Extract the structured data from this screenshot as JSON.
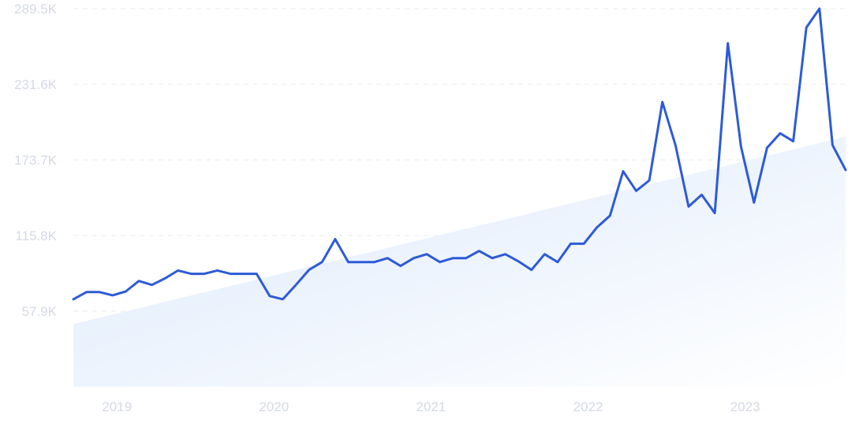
{
  "chart_data": {
    "type": "line",
    "title": "",
    "xlabel": "",
    "ylabel": "",
    "ylim": [
      0,
      289500
    ],
    "y_ticks": [
      {
        "value": 57900,
        "label": "57.9K"
      },
      {
        "value": 115800,
        "label": "115.8K"
      },
      {
        "value": 173700,
        "label": "173.7K"
      },
      {
        "value": 231600,
        "label": "231.6K"
      },
      {
        "value": 289500,
        "label": "289.5K"
      }
    ],
    "x_ticks": [
      {
        "value": "2019-01",
        "label": "2019"
      },
      {
        "value": "2020-01",
        "label": "2020"
      },
      {
        "value": "2021-01",
        "label": "2021"
      },
      {
        "value": "2022-01",
        "label": "2022"
      },
      {
        "value": "2023-01",
        "label": "2023"
      }
    ],
    "grid": true,
    "legend": "none",
    "line_color": "#2d5bd7",
    "trend_fill_color": "#dce9fb",
    "series": [
      {
        "x": [
          "2018-11",
          "2018-12",
          "2019-01",
          "2019-02",
          "2019-03",
          "2019-04",
          "2019-05",
          "2019-06",
          "2019-07",
          "2019-08",
          "2019-09",
          "2019-10",
          "2019-11",
          "2019-12",
          "2020-01",
          "2020-02",
          "2020-03",
          "2020-04",
          "2020-05",
          "2020-06",
          "2020-07",
          "2020-08",
          "2020-09",
          "2020-10",
          "2020-11",
          "2020-12",
          "2021-01",
          "2021-02",
          "2021-03",
          "2021-04",
          "2021-05",
          "2021-06",
          "2021-07",
          "2021-08",
          "2021-09",
          "2021-10",
          "2021-11",
          "2021-12",
          "2022-01",
          "2022-02",
          "2022-03",
          "2022-04",
          "2022-05",
          "2022-06",
          "2022-07",
          "2022-08",
          "2022-09",
          "2022-10",
          "2022-11",
          "2022-12",
          "2023-01",
          "2023-02",
          "2023-03",
          "2023-04",
          "2023-05",
          "2023-06",
          "2023-07",
          "2023-08",
          "2023-09",
          "2023-10"
        ],
        "values": [
          67000,
          72500,
          72500,
          70000,
          73000,
          81000,
          78000,
          83000,
          89000,
          86500,
          86500,
          89000,
          86500,
          86500,
          86500,
          69500,
          67000,
          78000,
          89500,
          95500,
          113000,
          95500,
          95500,
          95500,
          98500,
          92500,
          98500,
          101500,
          95500,
          98500,
          98500,
          104000,
          98500,
          101500,
          96000,
          89500,
          101500,
          95500,
          109500,
          109500,
          122000,
          131000,
          165000,
          150000,
          158000,
          218000,
          185000,
          138000,
          147000,
          133000,
          263000,
          184000,
          141000,
          183000,
          194000,
          188000,
          275000,
          289500,
          185000,
          166000
        ]
      }
    ],
    "trend": {
      "start_value": 48000,
      "end_value": 191500
    }
  }
}
